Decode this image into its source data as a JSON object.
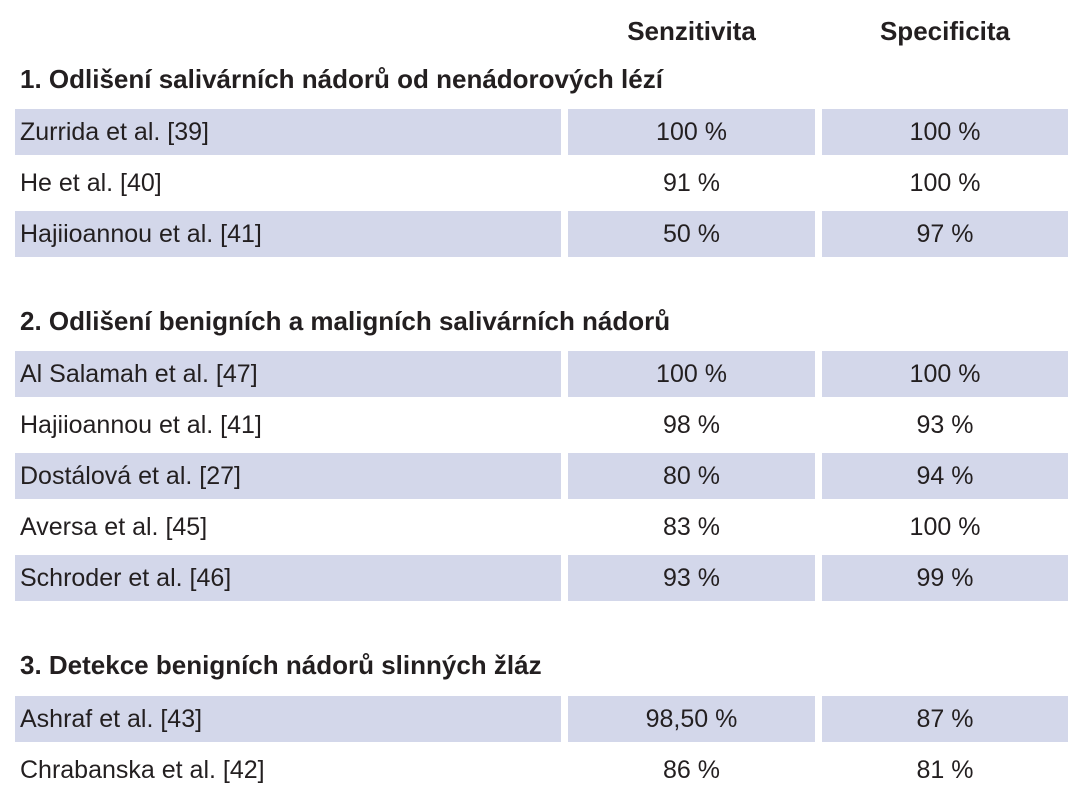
{
  "headers": {
    "sensitivity": "Senzitivita",
    "specificity": "Specificita"
  },
  "sections": [
    {
      "title": "1.  Odlišení salivárních nádorů od nenádorových lézí",
      "rows": [
        {
          "study": "Zurrida et al. [39]",
          "sensitivity": "100 %",
          "specificity": "100 %",
          "shaded": true
        },
        {
          "study": "He et al. [40]",
          "sensitivity": "91 %",
          "specificity": "100 %",
          "shaded": false
        },
        {
          "study": "Hajiioannou et al. [41]",
          "sensitivity": "50 %",
          "specificity": "97 %",
          "shaded": true
        }
      ]
    },
    {
      "title": "2. Odlišení benigních a maligních salivárních nádorů",
      "rows": [
        {
          "study": "Al Salamah et al. [47]",
          "sensitivity": "100 %",
          "specificity": "100 %",
          "shaded": true
        },
        {
          "study": "Hajiioannou et al. [41]",
          "sensitivity": "98 %",
          "specificity": "93 %",
          "shaded": false
        },
        {
          "study": "Dostálová et al. [27]",
          "sensitivity": "80  %",
          "specificity": "94  %",
          "shaded": true
        },
        {
          "study": "Aversa et al. [45]",
          "sensitivity": "83 %",
          "specificity": "100 %",
          "shaded": false
        },
        {
          "study": "Schroder et al.  [46]",
          "sensitivity": "93 %",
          "specificity": "99 %",
          "shaded": true
        }
      ]
    },
    {
      "title": "3. Detekce benigních nádorů slinných žláz",
      "rows": [
        {
          "study": "Ashraf et al. [43]",
          "sensitivity": "98,50 %",
          "specificity": "87 %",
          "shaded": true
        },
        {
          "study": "Chrabanska et al. [42]",
          "sensitivity": "86 %",
          "specificity": "81 %",
          "shaded": false
        }
      ]
    }
  ]
}
